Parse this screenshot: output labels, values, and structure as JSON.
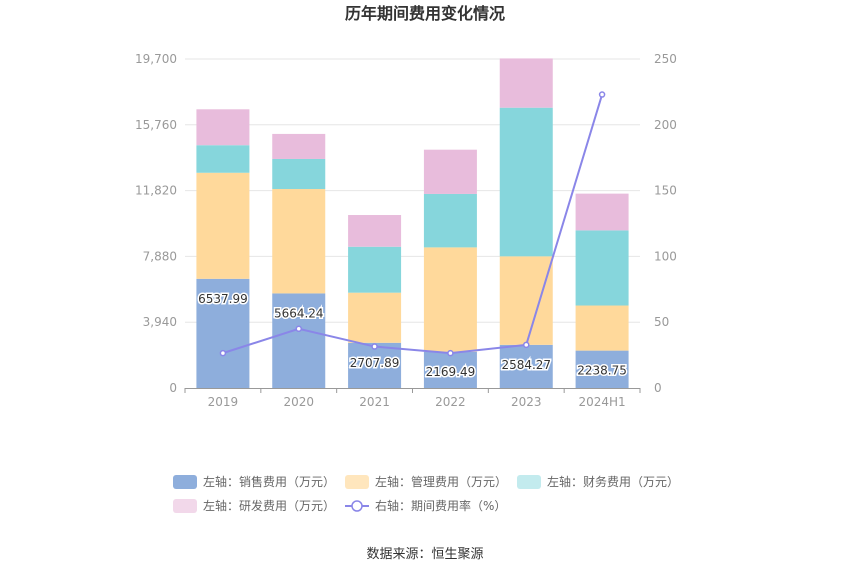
{
  "chart_data": {
    "type": "bar",
    "title": "历年期间费用变化情况",
    "source": "数据来源：恒生聚源",
    "categories": [
      "2019",
      "2020",
      "2021",
      "2022",
      "2023",
      "2024H1"
    ],
    "left_axis": {
      "min": 0,
      "max": 19700,
      "ticks": [
        "0",
        "3,940",
        "7,880",
        "11,820",
        "15,760",
        "19,700"
      ]
    },
    "right_axis": {
      "min": 0,
      "max": 250,
      "ticks": [
        "0",
        "50",
        "100",
        "150",
        "200",
        "250"
      ]
    },
    "grid": true,
    "legend_position": "bottom",
    "series": [
      {
        "name": "左轴：销售费用（万元）",
        "kind": "bar",
        "axis": "left",
        "color": "#8eaedc",
        "values": [
          6537.99,
          5664.24,
          2707.89,
          2169.49,
          2584.27,
          2238.75
        ],
        "labels": [
          "6537.99",
          "5664.24",
          "2707.89",
          "2169.49",
          "2584.27",
          "2238.75"
        ]
      },
      {
        "name": "左轴：管理费用（万元）",
        "kind": "bar",
        "axis": "left",
        "color": "#ffd99b",
        "values": [
          6350,
          6250,
          3000,
          6250,
          5300,
          2700
        ]
      },
      {
        "name": "左轴：财务费用（万元）",
        "kind": "bar",
        "axis": "left",
        "color": "#86d6dc",
        "values": [
          1650,
          1800,
          2750,
          3200,
          8900,
          4500
        ]
      },
      {
        "name": "左轴：研发费用（万元）",
        "kind": "bar",
        "axis": "left",
        "color": "#e8bcdc",
        "values": [
          2150,
          1500,
          1900,
          2650,
          2950,
          2200
        ]
      },
      {
        "name": "右轴：期间费用率（%）",
        "kind": "line",
        "axis": "right",
        "color": "#8a86e8",
        "values": [
          26.5,
          45.0,
          31.5,
          26.5,
          32.8,
          223.0
        ]
      }
    ]
  }
}
